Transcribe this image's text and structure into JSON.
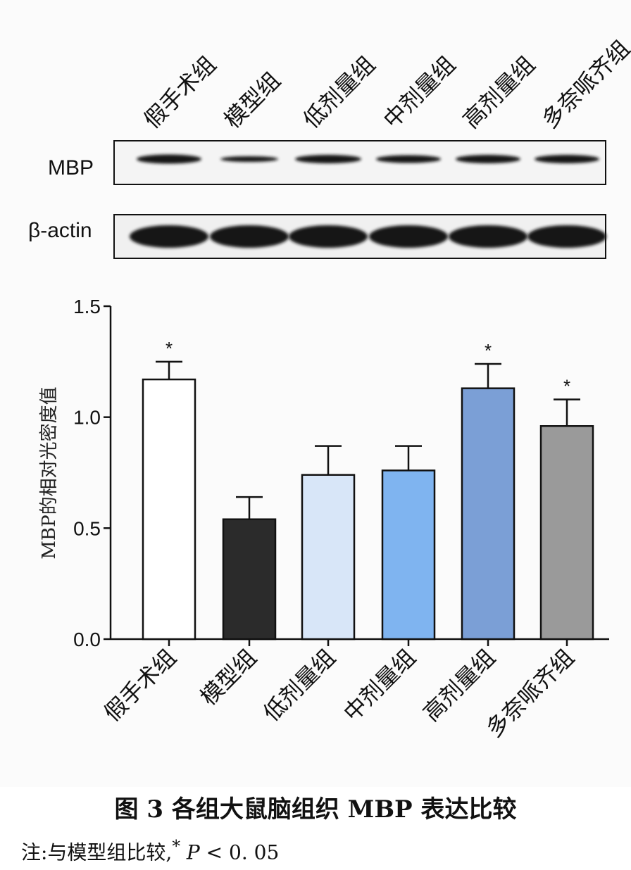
{
  "blot": {
    "lane_labels": [
      "假手术组",
      "模型组",
      "低剂量组",
      "中剂量组",
      "高剂量组",
      "多奈哌齐组"
    ],
    "row_labels": [
      "MBP",
      "β-actin"
    ]
  },
  "chart_data": {
    "type": "bar",
    "categories": [
      "假手术组",
      "模型组",
      "低剂量组",
      "中剂量组",
      "高剂量组",
      "多奈哌齐组"
    ],
    "values": [
      1.17,
      0.54,
      0.74,
      0.76,
      1.13,
      0.96
    ],
    "errors": [
      0.08,
      0.1,
      0.13,
      0.11,
      0.11,
      0.12
    ],
    "significance": [
      "*",
      "",
      "",
      "",
      "*",
      "*"
    ],
    "bar_colors": [
      "#ffffff",
      "#2b2b2b",
      "#d8e6f8",
      "#7fb4f0",
      "#7b9fd6",
      "#9a9a9a"
    ],
    "ylabel": "MBP的相对光密度值",
    "ylim": [
      0,
      1.5
    ],
    "yticks": [
      "0.0",
      "0.5",
      "1.0",
      "1.5"
    ],
    "grid": false
  },
  "caption": {
    "text": "图 3    各组大鼠脑组织 MBP 表达比较"
  },
  "note": {
    "prefix": "注:与模型组比较,",
    "star": "*",
    "p": "P",
    "rest": " < 0. 05"
  }
}
